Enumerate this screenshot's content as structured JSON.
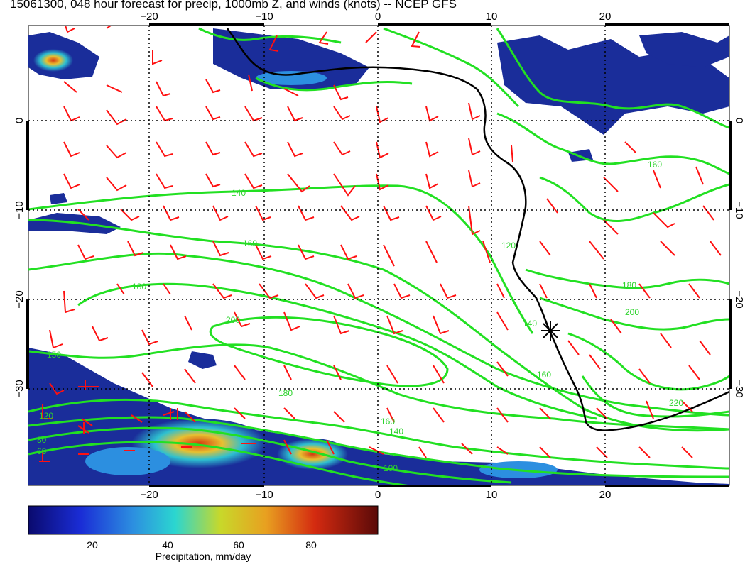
{
  "title": "15061300, 048 hour forecast for precip, 1000mb Z, and winds (knots) -- NCEP GFS",
  "map": {
    "x_tick_labels": [
      "−20",
      "−10",
      "0",
      "10",
      "20"
    ],
    "y_tick_labels": [
      "0",
      "−10",
      "−20",
      "−30"
    ],
    "contour_labels": [
      "140",
      "160",
      "180",
      "200",
      "120",
      "100",
      "80",
      "60",
      "140",
      "160",
      "180",
      "200",
      "220",
      "160",
      "140",
      "120",
      "180",
      "160",
      "150"
    ],
    "colors": {
      "contour": "#22e022",
      "barb": "#ff1010",
      "coast": "#000000",
      "precip_low": "#1a2d9a",
      "precip_high": "#d42a10"
    }
  },
  "colorbar": {
    "label": "Precipitation, mm/day",
    "ticks": [
      "20",
      "40",
      "60",
      "80"
    ],
    "range": [
      0,
      100
    ]
  }
}
